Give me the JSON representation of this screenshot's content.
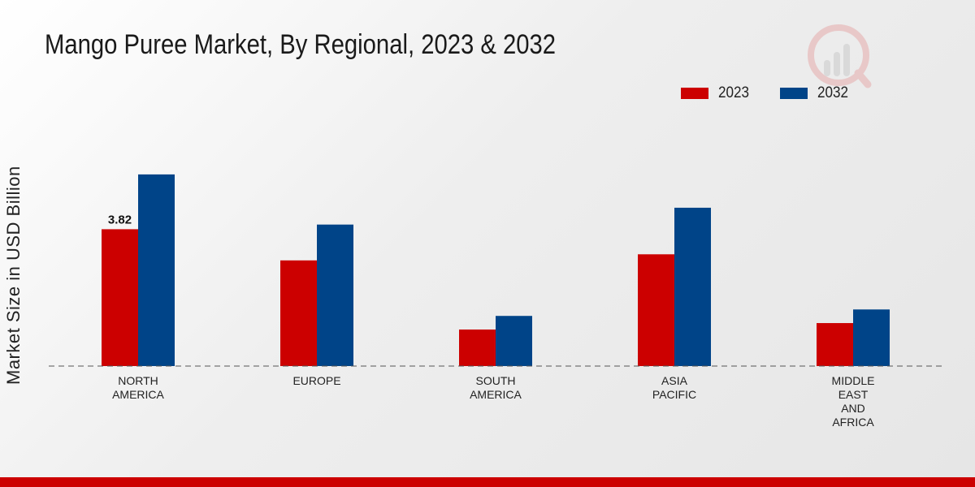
{
  "chart_data": {
    "type": "bar",
    "title": "Mango Puree Market, By Regional, 2023 & 2032",
    "ylabel": "Market Size in USD Billion",
    "xlabel": "",
    "categories": [
      "NORTH\nAMERICA",
      "EUROPE",
      "SOUTH\nAMERICA",
      "ASIA\nPACIFIC",
      "MIDDLE\nEAST\nAND\nAFRICA"
    ],
    "series": [
      {
        "name": "2023",
        "color": "#cc0000",
        "values": [
          3.82,
          2.95,
          1.02,
          3.12,
          1.2
        ]
      },
      {
        "name": "2032",
        "color": "#004488",
        "values": [
          5.35,
          3.95,
          1.4,
          4.42,
          1.58
        ]
      }
    ],
    "data_labels": [
      {
        "series": 0,
        "index": 0,
        "text": "3.82"
      }
    ],
    "ylim": [
      0,
      7.5
    ],
    "grid": false,
    "legend_position": "top-right"
  }
}
